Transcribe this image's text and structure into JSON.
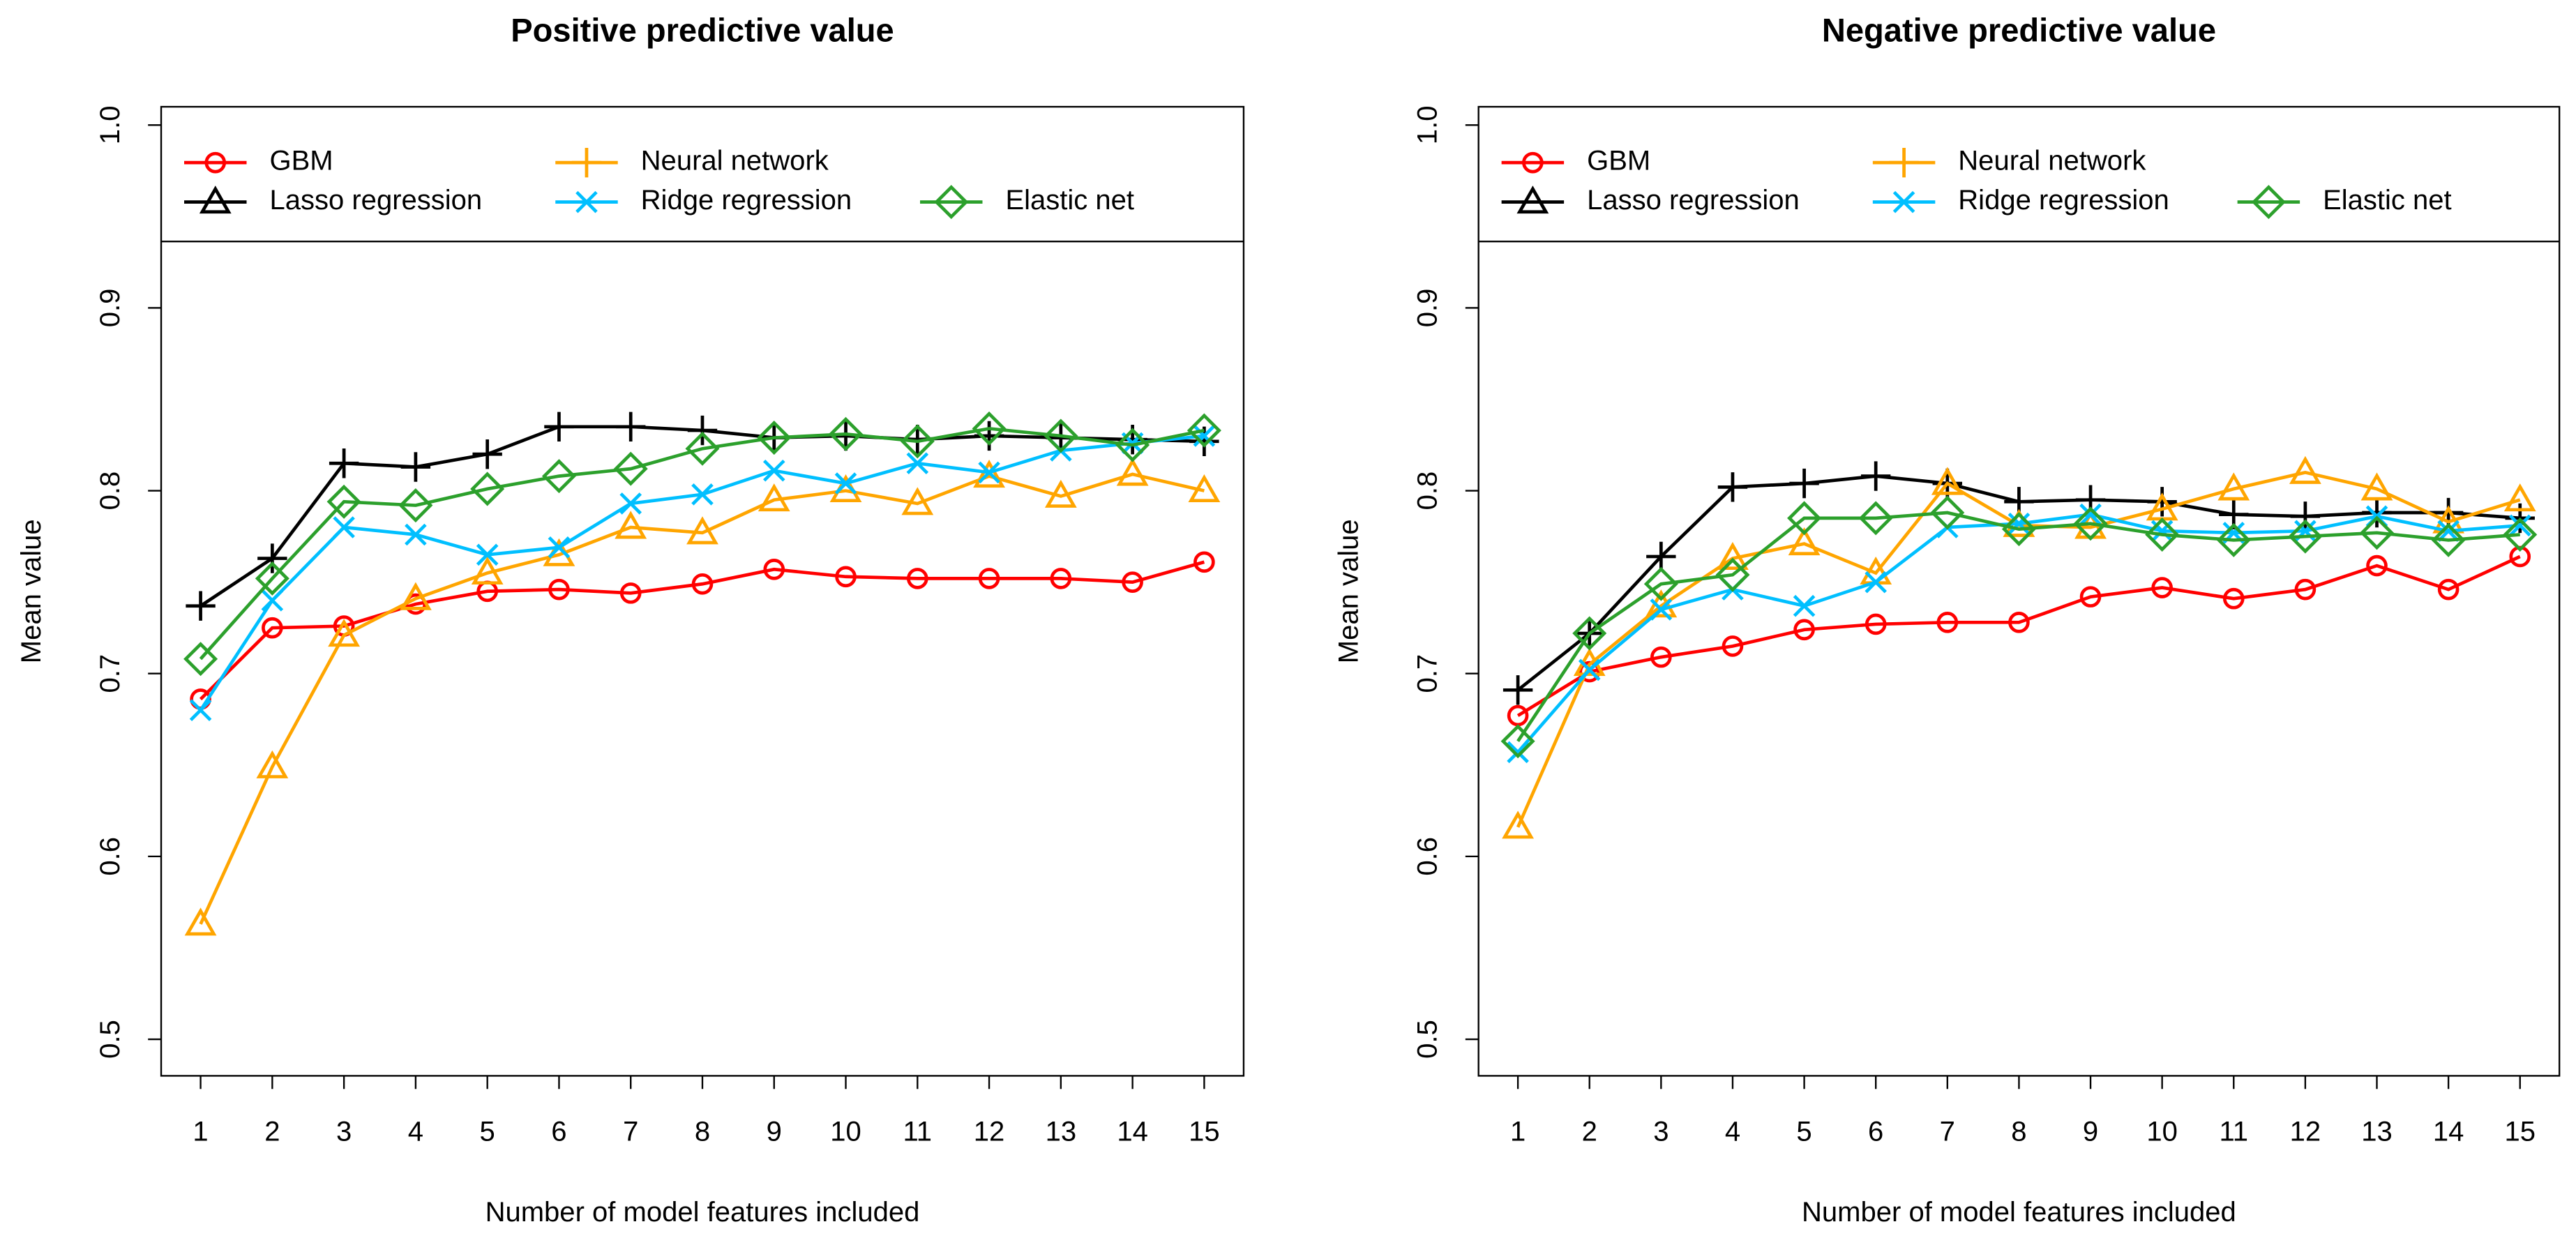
{
  "chart_data": [
    {
      "type": "line",
      "title": "Positive predictive value",
      "x_label": "Number of model features included",
      "y_label": "Mean value",
      "x": [
        1,
        2,
        3,
        4,
        5,
        6,
        7,
        8,
        9,
        10,
        11,
        12,
        13,
        14,
        15
      ],
      "xlim": [
        0.45,
        15.55
      ],
      "xticks": [
        1,
        2,
        3,
        4,
        5,
        6,
        7,
        8,
        9,
        10,
        11,
        12,
        13,
        14,
        15
      ],
      "ylim": [
        0.48,
        1.01
      ],
      "yticks": [
        0.5,
        0.6,
        0.7,
        0.8,
        0.9,
        {
          "value": 1,
          "label": "1.0"
        }
      ],
      "series": [
        {
          "name": "GBM",
          "color": "#ff0000",
          "marker": "circle",
          "legend_marker": "circle",
          "values": [
            0.686,
            0.725,
            0.726,
            0.738,
            0.745,
            0.746,
            0.744,
            0.749,
            0.757,
            0.753,
            0.752,
            0.752,
            0.752,
            0.75,
            0.761
          ]
        },
        {
          "name": "Lasso regression",
          "color": "#000000",
          "marker": "plus",
          "legend_marker": "triangle",
          "values": [
            0.737,
            0.763,
            0.815,
            0.813,
            0.82,
            0.835,
            0.835,
            0.833,
            0.829,
            0.83,
            0.828,
            0.83,
            0.829,
            0.828,
            0.827
          ]
        },
        {
          "name": "Neural network",
          "color": "#ffa500",
          "marker": "triangle",
          "legend_marker": "plus",
          "values": [
            0.563,
            0.649,
            0.721,
            0.741,
            0.755,
            0.765,
            0.78,
            0.777,
            0.795,
            0.8,
            0.793,
            0.808,
            0.797,
            0.809,
            0.8
          ]
        },
        {
          "name": "Ridge regression",
          "color": "#00bfff",
          "marker": "cross",
          "legend_marker": "cross",
          "values": [
            0.68,
            0.74,
            0.78,
            0.776,
            0.765,
            0.769,
            0.793,
            0.798,
            0.811,
            0.804,
            0.815,
            0.81,
            0.822,
            0.826,
            0.83
          ]
        },
        {
          "name": "Elastic net",
          "color": "#2ca02c",
          "marker": "diamond",
          "legend_marker": "diamond",
          "values": [
            0.708,
            0.752,
            0.794,
            0.792,
            0.801,
            0.808,
            0.812,
            0.823,
            0.829,
            0.831,
            0.827,
            0.834,
            0.83,
            0.825,
            0.833
          ]
        }
      ]
    },
    {
      "type": "line",
      "title": "Negative predictive value",
      "x_label": "Number of model features included",
      "y_label": "Mean value",
      "x": [
        1,
        2,
        3,
        4,
        5,
        6,
        7,
        8,
        9,
        10,
        11,
        12,
        13,
        14,
        15
      ],
      "xlim": [
        0.45,
        15.55
      ],
      "xticks": [
        1,
        2,
        3,
        4,
        5,
        6,
        7,
        8,
        9,
        10,
        11,
        12,
        13,
        14,
        15
      ],
      "ylim": [
        0.48,
        1.01
      ],
      "yticks": [
        0.5,
        0.6,
        0.7,
        0.8,
        0.9,
        {
          "value": 1,
          "label": "1.0"
        }
      ],
      "series": [
        {
          "name": "GBM",
          "color": "#ff0000",
          "marker": "circle",
          "legend_marker": "circle",
          "values": [
            0.677,
            0.701,
            0.709,
            0.715,
            0.724,
            0.727,
            0.728,
            0.728,
            0.742,
            0.747,
            0.741,
            0.746,
            0.759,
            0.746,
            0.764
          ]
        },
        {
          "name": "Lasso regression",
          "color": "#000000",
          "marker": "plus",
          "legend_marker": "triangle",
          "values": [
            0.691,
            0.722,
            0.764,
            0.802,
            0.804,
            0.808,
            0.804,
            0.794,
            0.795,
            0.794,
            0.787,
            0.786,
            0.788,
            0.788,
            0.785
          ]
        },
        {
          "name": "Neural network",
          "color": "#ffa500",
          "marker": "triangle",
          "legend_marker": "plus",
          "values": [
            0.616,
            0.705,
            0.737,
            0.763,
            0.771,
            0.755,
            0.804,
            0.781,
            0.78,
            0.79,
            0.801,
            0.81,
            0.801,
            0.783,
            0.795
          ]
        },
        {
          "name": "Ridge regression",
          "color": "#00bfff",
          "marker": "cross",
          "legend_marker": "cross",
          "values": [
            0.657,
            0.702,
            0.735,
            0.746,
            0.737,
            0.75,
            0.78,
            0.782,
            0.787,
            0.778,
            0.777,
            0.778,
            0.786,
            0.778,
            0.781
          ]
        },
        {
          "name": "Elastic net",
          "color": "#2ca02c",
          "marker": "diamond",
          "legend_marker": "diamond",
          "values": [
            0.663,
            0.722,
            0.749,
            0.754,
            0.785,
            0.785,
            0.788,
            0.779,
            0.782,
            0.776,
            0.773,
            0.775,
            0.777,
            0.773,
            0.776
          ]
        }
      ]
    }
  ]
}
